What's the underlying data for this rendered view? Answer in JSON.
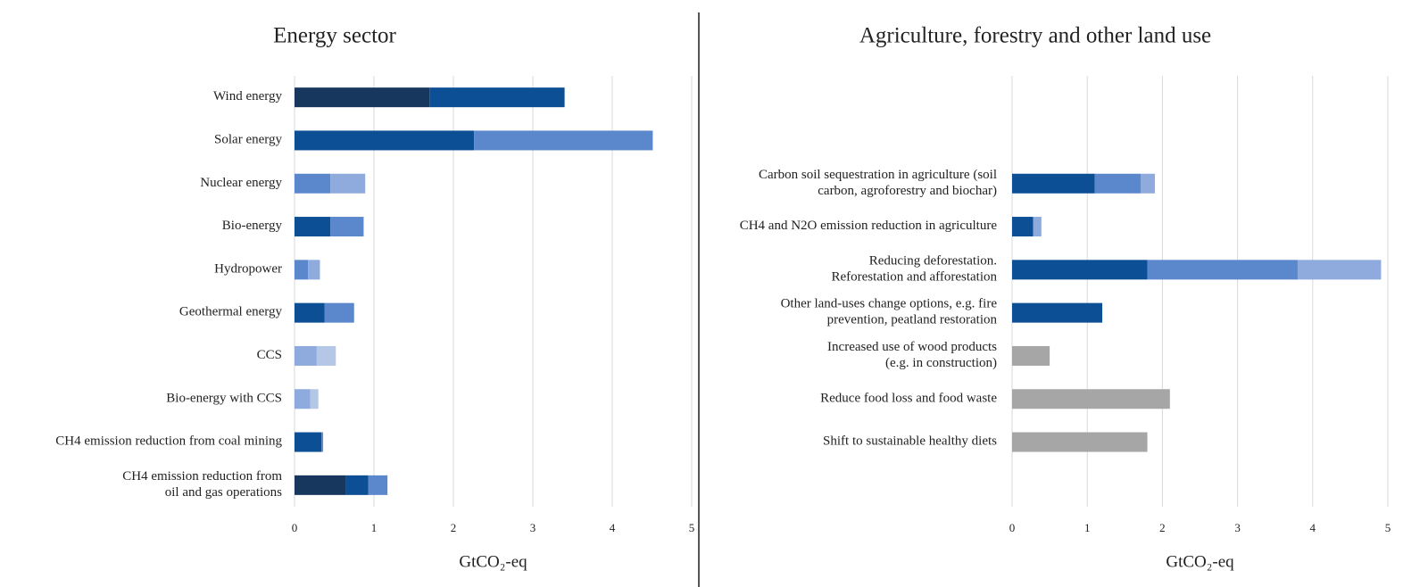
{
  "chart_data": [
    {
      "type": "stacked_barh",
      "title": "Energy sector",
      "x_label": "GtCO₂-eq",
      "categories": [
        [
          "Wind energy"
        ],
        [
          "Solar energy"
        ],
        [
          "Nuclear energy"
        ],
        [
          "Bio-energy"
        ],
        [
          "Hydropower"
        ],
        [
          "Geothermal energy"
        ],
        [
          "CCS"
        ],
        [
          "Bio-energy with CCS"
        ],
        [
          "CH4 emission reduction from coal mining"
        ],
        [
          "CH4 emission  reduction from",
          "oil and gas operations"
        ]
      ],
      "series": [
        {
          "color": "#17375e",
          "values": [
            1.7,
            null,
            null,
            null,
            null,
            null,
            null,
            null,
            null,
            0.65
          ]
        },
        {
          "color": "#0d4f95",
          "values": [
            1.7,
            2.26,
            null,
            0.45,
            null,
            0.38,
            null,
            null,
            0.34,
            0.28
          ]
        },
        {
          "color": "#5b87cd",
          "values": [
            null,
            2.25,
            0.45,
            0.42,
            0.17,
            0.37,
            null,
            null,
            0.02,
            0.24
          ]
        },
        {
          "color": "#8faadc",
          "values": [
            null,
            null,
            0.44,
            null,
            0.15,
            null,
            0.28,
            0.2,
            null,
            null
          ]
        },
        {
          "color": "#b4c7e7",
          "values": [
            null,
            null,
            null,
            null,
            null,
            null,
            0.24,
            0.1,
            null,
            null
          ]
        }
      ],
      "xlim": [
        0,
        5
      ],
      "xticks": [
        0,
        1,
        2,
        3,
        4,
        5
      ],
      "grid": true
    },
    {
      "type": "stacked_barh",
      "title": "Agriculture, forestry and other land use",
      "x_label": "GtCO₂-eq",
      "categories": [
        null,
        null,
        [
          "Carbon soil sequestration in agriculture (soil",
          "carbon, agroforestry and biochar)"
        ],
        [
          "CH4 and N2O emission reduction in agriculture"
        ],
        [
          "Reducing deforestation.",
          "Reforestation and afforestation"
        ],
        [
          "Other land-uses change options, e.g. fire",
          "prevention, peatland restoration"
        ],
        [
          "Increased use of wood products",
          "(e.g. in construction)"
        ],
        [
          "Reduce food loss and food waste"
        ],
        [
          "Shift to sustainable healthy diets"
        ],
        null
      ],
      "series": [
        {
          "color": "#0d4f95",
          "values": [
            null,
            null,
            1.1,
            0.28,
            1.8,
            1.2,
            null,
            null,
            null,
            null
          ]
        },
        {
          "color": "#5b87cd",
          "values": [
            null,
            null,
            0.61,
            null,
            2.0,
            null,
            null,
            null,
            null,
            null
          ]
        },
        {
          "color": "#8faadc",
          "values": [
            null,
            null,
            0.19,
            0.11,
            1.11,
            null,
            null,
            null,
            null,
            null
          ]
        },
        {
          "color": "#a6a6a6",
          "values": [
            null,
            null,
            null,
            null,
            null,
            null,
            0.5,
            2.1,
            1.8,
            null
          ]
        }
      ],
      "xlim": [
        0,
        5
      ],
      "xticks": [
        0,
        1,
        2,
        3,
        4,
        5
      ],
      "grid": true
    }
  ]
}
